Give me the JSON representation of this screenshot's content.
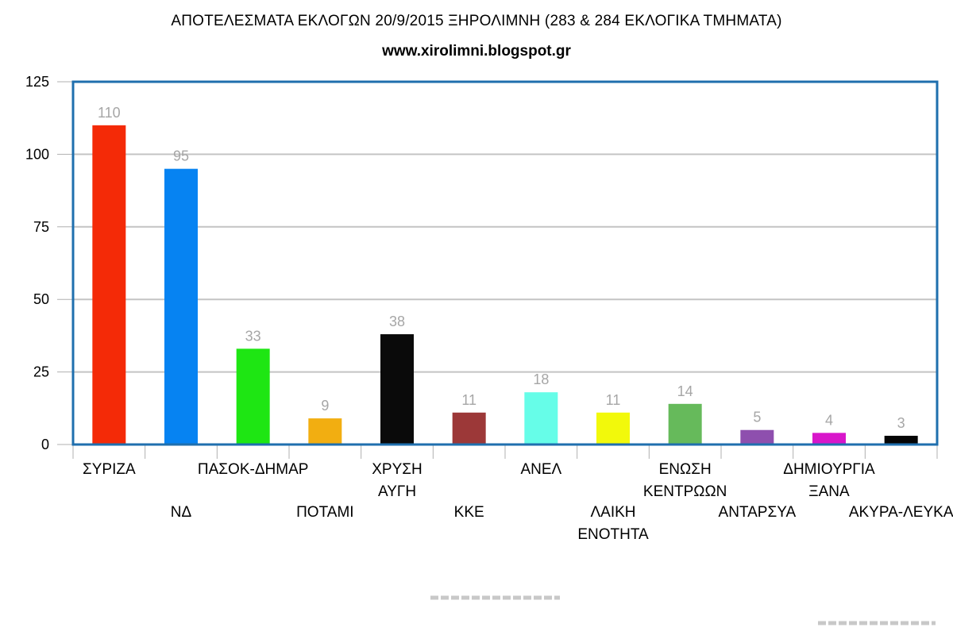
{
  "chart_data": {
    "type": "bar",
    "title": "ΑΠΟΤΕΛΕΣΜΑΤΑ ΕΚΛΟΓΩΝ 20/9/2015 ΞΗΡΟΛΙΜΝΗ (283 & 284 ΕΚΛΟΓΙΚΑ ΤΜΗΜΑΤΑ)",
    "subtitle": "www.xirolimni.blogspot.gr",
    "categories": [
      [
        "ΣΥΡΙΖΑ"
      ],
      [
        "ΝΔ"
      ],
      [
        "ΠΑΣΟΚ-ΔΗΜΑΡ"
      ],
      [
        "ΠΟΤΑΜΙ"
      ],
      [
        "ΧΡΥΣΗ",
        "ΑΥΓΗ"
      ],
      [
        "ΚΚΕ"
      ],
      [
        "ΑΝΕΛ"
      ],
      [
        "ΛΑΙΚΗ",
        "ΕΝΟΤΗΤΑ"
      ],
      [
        "ΕΝΩΣΗ",
        "ΚΕΝΤΡΩΩΝ"
      ],
      [
        "ΑΝΤΑΡΣΥΑ"
      ],
      [
        "ΔΗΜΙΟΥΡΓΙΑ",
        "ΞΑΝΑ"
      ],
      [
        "ΑΚΥΡΑ-ΛΕΥΚΑ"
      ]
    ],
    "values": [
      110,
      95,
      33,
      9,
      38,
      11,
      18,
      11,
      14,
      5,
      4,
      3
    ],
    "colors": [
      "#f42a07",
      "#0683f2",
      "#1ee613",
      "#f2ae11",
      "#0a0a0a",
      "#9c3838",
      "#66fde8",
      "#f2f90b",
      "#66ba5b",
      "#8e4fae",
      "#d816ca",
      "#050505"
    ],
    "yticks": [
      0,
      25,
      50,
      75,
      100,
      125
    ],
    "ylim": [
      0,
      125
    ],
    "xlabel": "",
    "ylabel": "",
    "grid": true,
    "legend": "none"
  }
}
